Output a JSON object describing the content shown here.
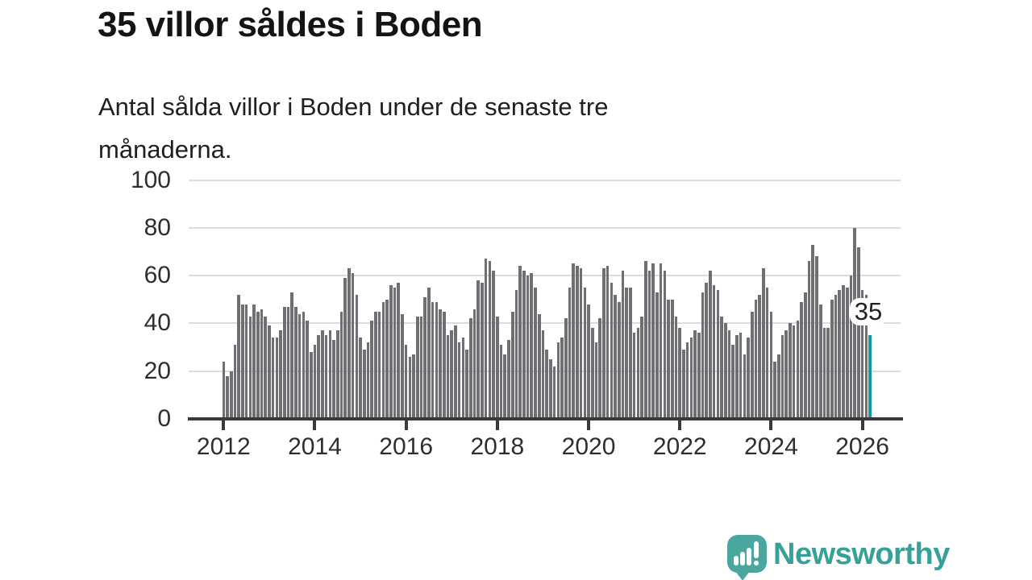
{
  "header": {
    "title": "35 villor såldes i Boden",
    "subtitle_line1": "Antal sålda villor i Boden under de senaste tre",
    "subtitle_line2": "månaderna."
  },
  "chart_data": {
    "type": "bar",
    "title": "35 villor såldes i Boden",
    "subtitle": "Antal sålda villor i Boden under de senaste tre månaderna.",
    "xlabel": "",
    "ylabel": "",
    "unit": "antal sålda villor per rullande tremånadersperiod",
    "x_start": "2012-01",
    "frequency": "monthly",
    "ylim": [
      0,
      100
    ],
    "grid": true,
    "y_ticks": [
      0,
      20,
      40,
      60,
      80,
      100
    ],
    "x_tick_labels": [
      "2012",
      "2014",
      "2016",
      "2018",
      "2020",
      "2022",
      "2024",
      "2026"
    ],
    "x_tick_indices": [
      0,
      24,
      48,
      72,
      96,
      120,
      144,
      168
    ],
    "values": [
      24,
      18,
      20,
      31,
      52,
      48,
      48,
      43,
      48,
      45,
      46,
      43,
      39,
      34,
      34,
      37,
      47,
      47,
      53,
      47,
      44,
      45,
      41,
      28,
      31,
      35,
      37,
      35,
      37,
      33,
      37,
      45,
      59,
      63,
      61,
      52,
      34,
      29,
      32,
      41,
      45,
      45,
      49,
      50,
      56,
      55,
      57,
      44,
      31,
      26,
      27,
      43,
      43,
      51,
      55,
      49,
      49,
      46,
      45,
      35,
      37,
      39,
      32,
      34,
      29,
      42,
      46,
      58,
      57,
      67,
      66,
      62,
      43,
      31,
      27,
      33,
      45,
      54,
      64,
      62,
      60,
      61,
      55,
      44,
      37,
      29,
      25,
      22,
      32,
      34,
      42,
      55,
      65,
      64,
      63,
      55,
      48,
      38,
      32,
      42,
      63,
      64,
      57,
      52,
      49,
      62,
      55,
      55,
      36,
      38,
      43,
      66,
      62,
      65,
      53,
      65,
      62,
      50,
      50,
      43,
      38,
      29,
      32,
      34,
      37,
      36,
      53,
      57,
      62,
      56,
      54,
      43,
      40,
      37,
      31,
      35,
      36,
      27,
      34,
      45,
      50,
      52,
      63,
      55,
      45,
      24,
      27,
      35,
      37,
      40,
      39,
      41,
      49,
      53,
      66,
      73,
      68,
      48,
      38,
      38,
      50,
      52,
      54,
      56,
      55,
      60,
      80,
      72,
      54,
      52,
      35
    ],
    "highlight_last": {
      "value": 35,
      "label": "35"
    },
    "colors": {
      "bar": "#6e6e73",
      "highlight": "#129aa0",
      "axis": "#3a3a3a",
      "grid": "#dcdcdc",
      "tick_text": "#2e2e2e"
    },
    "legend": null
  },
  "annotation": {
    "label": "35"
  },
  "footer": {
    "logo_text": "Newsworthy",
    "logo_text_color": "#35a198",
    "logo_mark_color": "#4aa79e"
  }
}
